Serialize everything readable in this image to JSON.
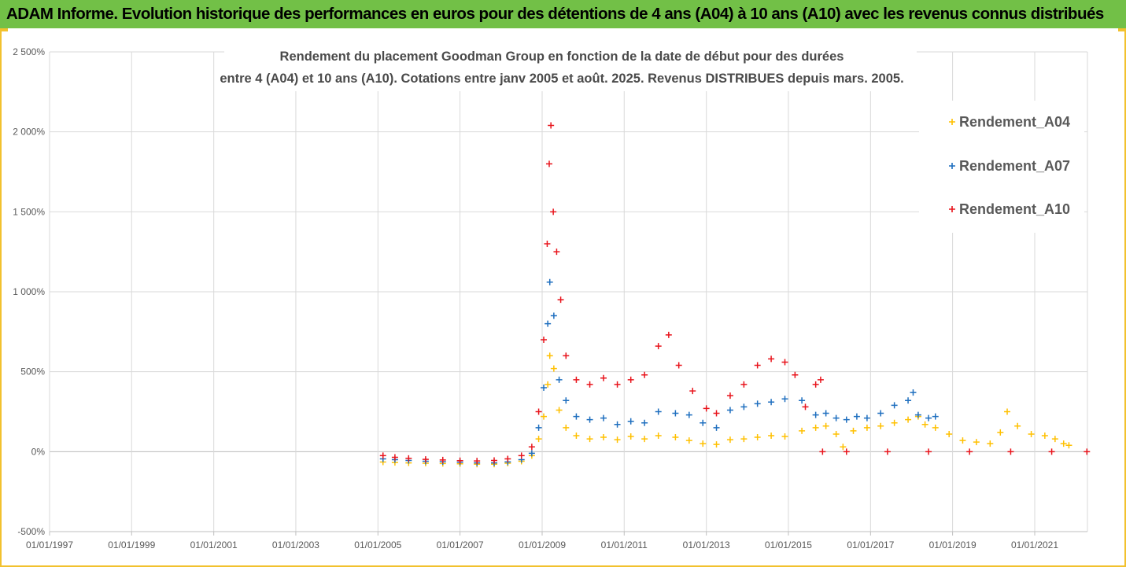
{
  "banner": {
    "title": "ADAM Informe. Evolution historique des performances en euros pour des détentions de 4 ans (A04) à 10 ans (A10) avec les revenus connus distribués"
  },
  "colors": {
    "banner_bg": "#72c047",
    "frame_border": "#f2c12e",
    "series_A04": "#ffc000",
    "series_A07": "#1f6fbf",
    "series_A10": "#e8141c",
    "grid": "#d9d9d9"
  },
  "chart_data": {
    "type": "scatter",
    "marker": "plus",
    "title_lines": [
      "Rendement du placement Goodman Group en fonction de la date de début pour des durées",
      "entre 4 (A04) et 10 ans (A10). Cotations entre janv 2005 et août. 2025. Revenus DISTRIBUES depuis mars. 2005."
    ],
    "x_axis": {
      "type": "date",
      "range": [
        "1997-01-01",
        "2022-04-15"
      ],
      "tick_labels": [
        "01/01/1997",
        "01/01/1999",
        "01/01/2001",
        "01/01/2003",
        "01/01/2005",
        "01/01/2007",
        "01/01/2009",
        "01/01/2011",
        "01/01/2013",
        "01/01/2015",
        "01/01/2017",
        "01/01/2019",
        "01/01/2021"
      ]
    },
    "y_axis": {
      "unit": "%",
      "range": [
        -500,
        2500
      ],
      "tick_values": [
        -500,
        0,
        500,
        1000,
        1500,
        2000,
        2500
      ],
      "tick_labels": [
        "-500%",
        "0%",
        "500%",
        "1 000%",
        "1 500%",
        "2 000%",
        "2 500%"
      ]
    },
    "grid": "vertical and horizontal",
    "legend_position": "top-right",
    "series": [
      {
        "name": "Rendement_A04",
        "points": [
          [
            "2005-02-15",
            -65
          ],
          [
            "2005-06-01",
            -68
          ],
          [
            "2005-10-01",
            -70
          ],
          [
            "2006-03-01",
            -72
          ],
          [
            "2006-08-01",
            -74
          ],
          [
            "2007-01-01",
            -76
          ],
          [
            "2007-06-01",
            -78
          ],
          [
            "2007-11-01",
            -78
          ],
          [
            "2008-03-01",
            -72
          ],
          [
            "2008-07-01",
            -60
          ],
          [
            "2008-10-01",
            -25
          ],
          [
            "2008-12-01",
            80
          ],
          [
            "2009-01-15",
            220
          ],
          [
            "2009-02-20",
            420
          ],
          [
            "2009-03-10",
            600
          ],
          [
            "2009-04-15",
            520
          ],
          [
            "2009-06-01",
            260
          ],
          [
            "2009-08-01",
            150
          ],
          [
            "2009-11-01",
            100
          ],
          [
            "2010-03-01",
            80
          ],
          [
            "2010-07-01",
            90
          ],
          [
            "2010-11-01",
            75
          ],
          [
            "2011-03-01",
            95
          ],
          [
            "2011-07-01",
            80
          ],
          [
            "2011-11-01",
            100
          ],
          [
            "2012-04-01",
            90
          ],
          [
            "2012-08-01",
            70
          ],
          [
            "2012-12-01",
            50
          ],
          [
            "2013-04-01",
            45
          ],
          [
            "2013-08-01",
            75
          ],
          [
            "2013-12-01",
            80
          ],
          [
            "2014-04-01",
            90
          ],
          [
            "2014-08-01",
            100
          ],
          [
            "2014-12-01",
            95
          ],
          [
            "2015-05-01",
            130
          ],
          [
            "2015-09-01",
            150
          ],
          [
            "2015-12-01",
            160
          ],
          [
            "2016-03-01",
            110
          ],
          [
            "2016-05-01",
            30
          ],
          [
            "2016-08-01",
            130
          ],
          [
            "2016-12-01",
            150
          ],
          [
            "2017-04-01",
            160
          ],
          [
            "2017-08-01",
            180
          ],
          [
            "2017-12-01",
            200
          ],
          [
            "2018-03-01",
            220
          ],
          [
            "2018-05-01",
            170
          ],
          [
            "2018-08-01",
            150
          ],
          [
            "2018-12-01",
            110
          ],
          [
            "2019-04-01",
            70
          ],
          [
            "2019-08-01",
            60
          ],
          [
            "2019-12-01",
            50
          ],
          [
            "2020-03-01",
            120
          ],
          [
            "2020-05-01",
            250
          ],
          [
            "2020-08-01",
            160
          ],
          [
            "2020-12-01",
            110
          ],
          [
            "2021-04-01",
            100
          ],
          [
            "2021-07-01",
            80
          ],
          [
            "2021-09-15",
            50
          ],
          [
            "2021-11-01",
            40
          ]
        ]
      },
      {
        "name": "Rendement_A07",
        "points": [
          [
            "2005-02-15",
            -45
          ],
          [
            "2005-06-01",
            -50
          ],
          [
            "2005-10-01",
            -55
          ],
          [
            "2006-03-01",
            -60
          ],
          [
            "2006-08-01",
            -63
          ],
          [
            "2007-01-01",
            -66
          ],
          [
            "2007-06-01",
            -70
          ],
          [
            "2007-11-01",
            -70
          ],
          [
            "2008-03-01",
            -64
          ],
          [
            "2008-07-01",
            -50
          ],
          [
            "2008-10-01",
            -10
          ],
          [
            "2008-12-01",
            150
          ],
          [
            "2009-01-15",
            400
          ],
          [
            "2009-02-20",
            800
          ],
          [
            "2009-03-10",
            1060
          ],
          [
            "2009-04-15",
            850
          ],
          [
            "2009-06-01",
            450
          ],
          [
            "2009-08-01",
            320
          ],
          [
            "2009-11-01",
            220
          ],
          [
            "2010-03-01",
            200
          ],
          [
            "2010-07-01",
            210
          ],
          [
            "2010-11-01",
            170
          ],
          [
            "2011-03-01",
            190
          ],
          [
            "2011-07-01",
            180
          ],
          [
            "2011-11-01",
            250
          ],
          [
            "2012-04-01",
            240
          ],
          [
            "2012-08-01",
            230
          ],
          [
            "2012-12-01",
            180
          ],
          [
            "2013-04-01",
            150
          ],
          [
            "2013-08-01",
            260
          ],
          [
            "2013-12-01",
            280
          ],
          [
            "2014-04-01",
            300
          ],
          [
            "2014-08-01",
            310
          ],
          [
            "2014-12-01",
            330
          ],
          [
            "2015-05-01",
            320
          ],
          [
            "2015-09-01",
            230
          ],
          [
            "2015-12-01",
            240
          ],
          [
            "2016-03-01",
            210
          ],
          [
            "2016-06-01",
            200
          ],
          [
            "2016-09-01",
            220
          ],
          [
            "2016-12-01",
            210
          ],
          [
            "2017-04-01",
            240
          ],
          [
            "2017-08-01",
            290
          ],
          [
            "2017-12-01",
            320
          ],
          [
            "2018-01-15",
            370
          ],
          [
            "2018-03-01",
            230
          ],
          [
            "2018-06-01",
            210
          ],
          [
            "2018-08-01",
            220
          ]
        ]
      },
      {
        "name": "Rendement_A10",
        "points": [
          [
            "2005-02-15",
            -25
          ],
          [
            "2005-06-01",
            -35
          ],
          [
            "2005-10-01",
            -42
          ],
          [
            "2006-03-01",
            -48
          ],
          [
            "2006-08-01",
            -52
          ],
          [
            "2007-01-01",
            -56
          ],
          [
            "2007-06-01",
            -58
          ],
          [
            "2007-11-01",
            -55
          ],
          [
            "2008-03-01",
            -45
          ],
          [
            "2008-07-01",
            -25
          ],
          [
            "2008-10-01",
            30
          ],
          [
            "2008-12-01",
            250
          ],
          [
            "2009-01-15",
            700
          ],
          [
            "2009-02-15",
            1300
          ],
          [
            "2009-03-05",
            1800
          ],
          [
            "2009-03-20",
            2040
          ],
          [
            "2009-04-10",
            1500
          ],
          [
            "2009-05-10",
            1250
          ],
          [
            "2009-06-15",
            950
          ],
          [
            "2009-08-01",
            600
          ],
          [
            "2009-11-01",
            450
          ],
          [
            "2010-03-01",
            420
          ],
          [
            "2010-07-01",
            460
          ],
          [
            "2010-11-01",
            420
          ],
          [
            "2011-03-01",
            450
          ],
          [
            "2011-07-01",
            480
          ],
          [
            "2011-11-01",
            660
          ],
          [
            "2012-02-01",
            730
          ],
          [
            "2012-05-01",
            540
          ],
          [
            "2012-09-01",
            380
          ],
          [
            "2013-01-01",
            270
          ],
          [
            "2013-04-01",
            240
          ],
          [
            "2013-08-01",
            350
          ],
          [
            "2013-12-01",
            420
          ],
          [
            "2014-04-01",
            540
          ],
          [
            "2014-08-01",
            580
          ],
          [
            "2014-12-01",
            560
          ],
          [
            "2015-03-01",
            480
          ],
          [
            "2015-06-01",
            280
          ],
          [
            "2015-09-01",
            420
          ],
          [
            "2015-10-15",
            450
          ],
          [
            "2015-11-01",
            0
          ],
          [
            "2016-06-01",
            0
          ],
          [
            "2017-06-01",
            0
          ],
          [
            "2018-06-01",
            0
          ],
          [
            "2019-06-01",
            0
          ],
          [
            "2020-06-01",
            0
          ],
          [
            "2021-06-01",
            0
          ],
          [
            "2022-04-10",
            0
          ]
        ]
      }
    ]
  }
}
